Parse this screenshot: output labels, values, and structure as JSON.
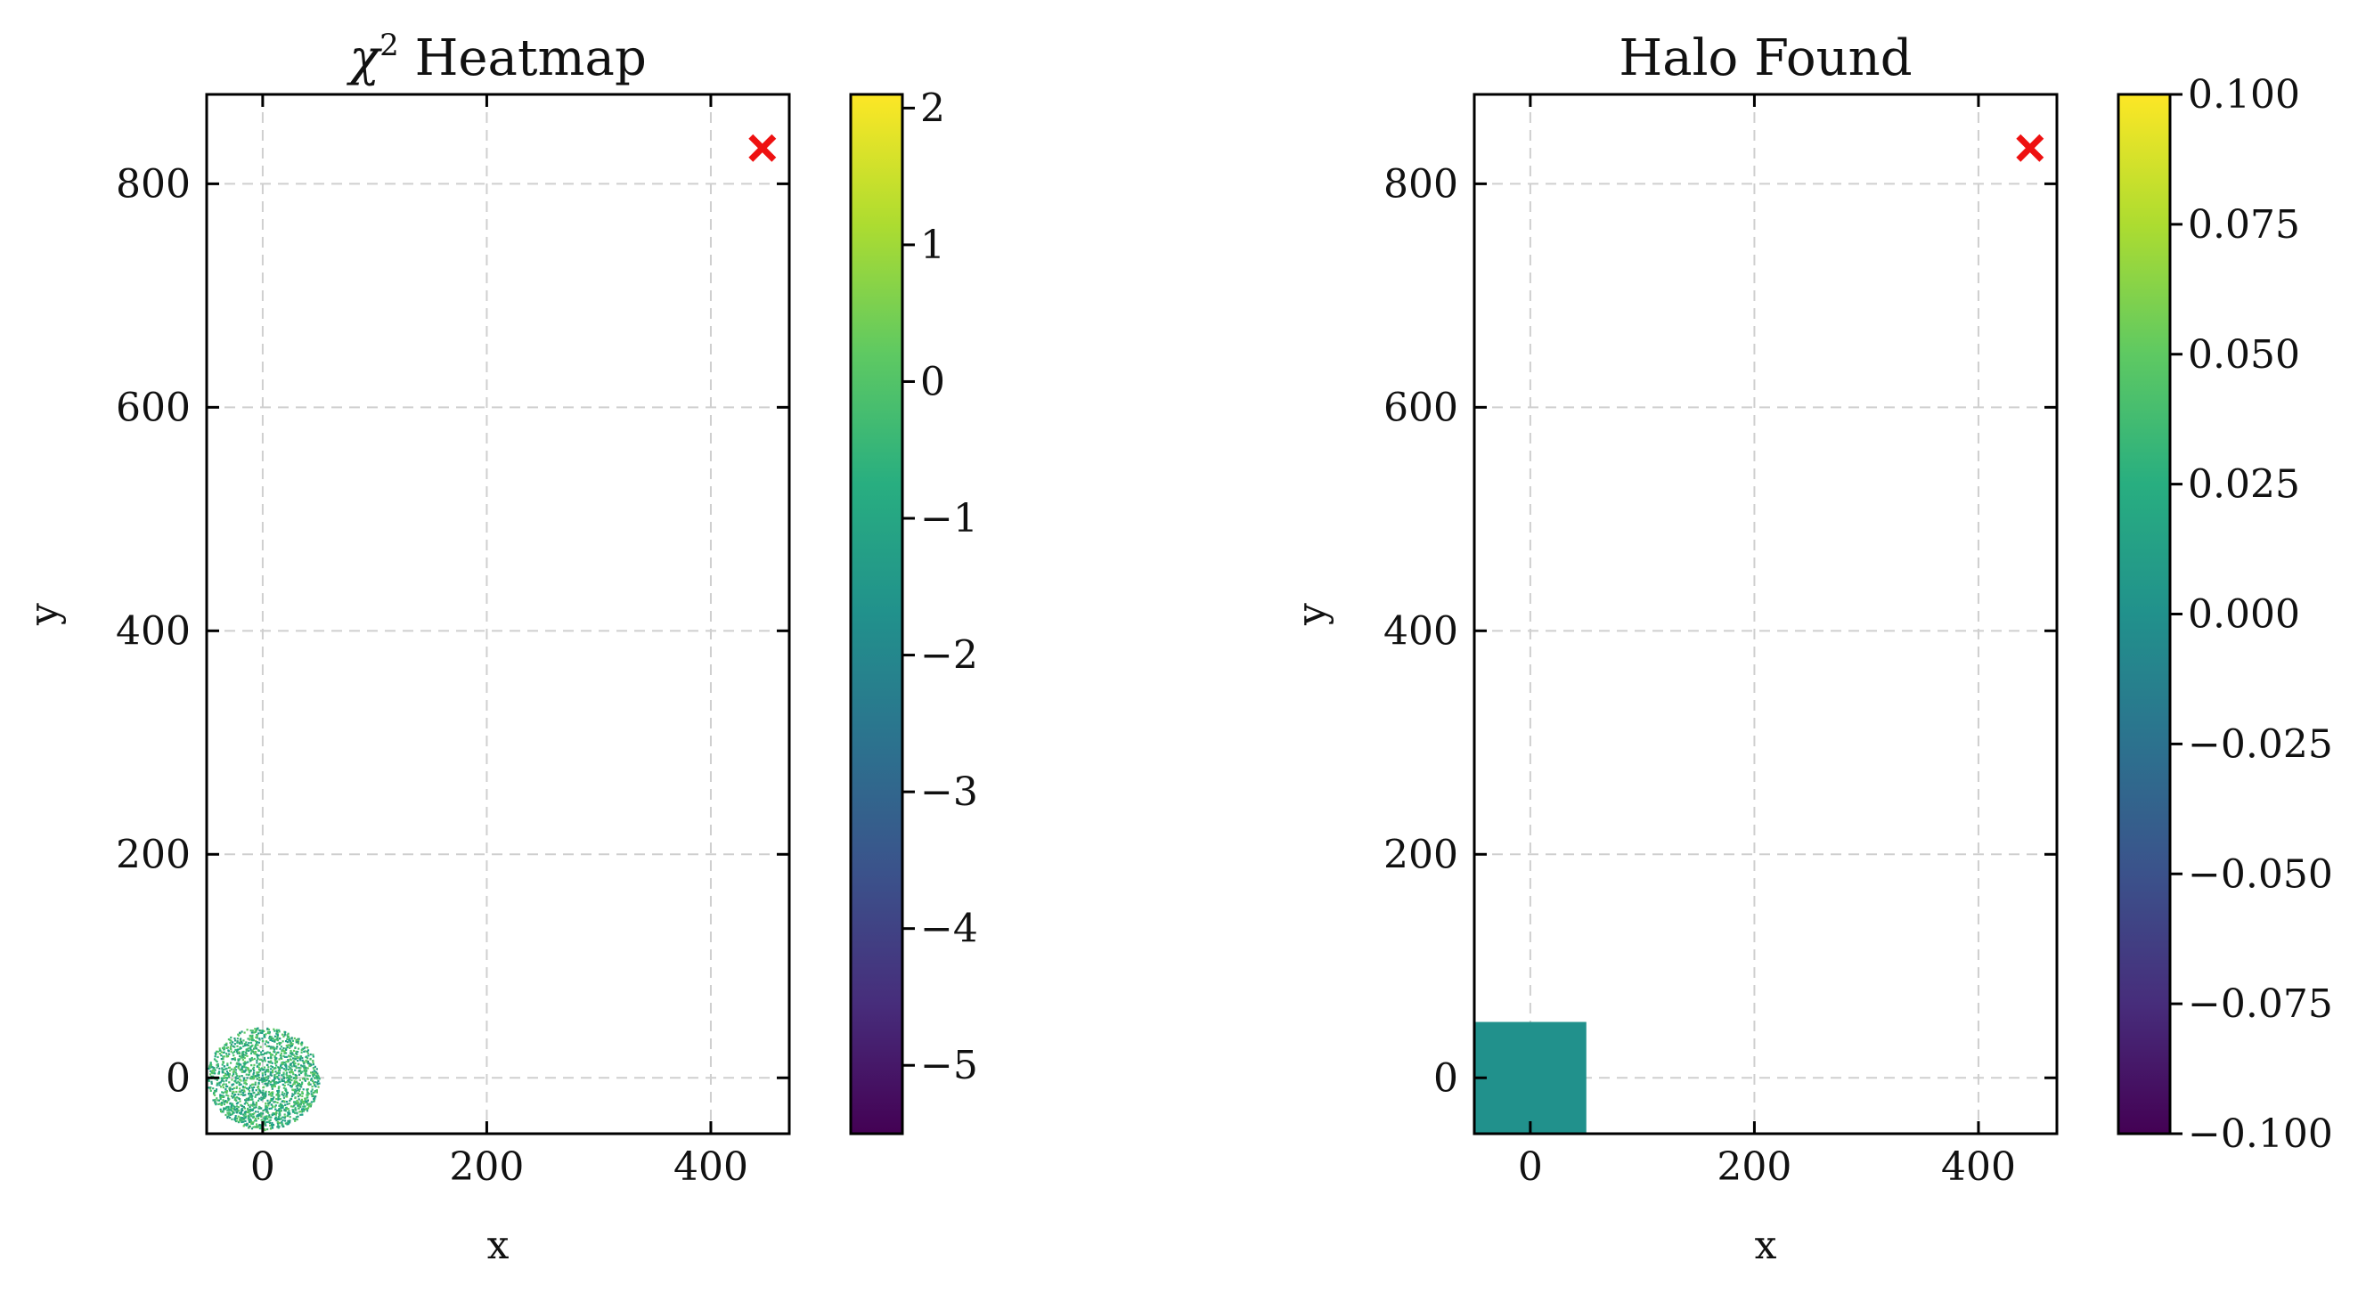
{
  "chart_data": [
    {
      "type": "heatmap",
      "title": "χ² Heatmap",
      "xlabel": "x",
      "ylabel": "y",
      "xlim": [
        -50,
        470
      ],
      "ylim": [
        -50,
        880
      ],
      "xticks": [
        0,
        200,
        400
      ],
      "yticks": [
        0,
        200,
        400,
        600,
        800
      ],
      "grid": true,
      "colorbar": {
        "colormap": "viridis",
        "vmin": -5.5,
        "vmax": 2.1,
        "ticks": [
          2,
          1,
          0,
          -1,
          -2,
          -3,
          -4,
          -5
        ]
      },
      "scatter_region": {
        "center": [
          0,
          0
        ],
        "radius": 50,
        "color": "#35b779"
      },
      "marker": {
        "x": 446,
        "y": 832,
        "symbol": "x",
        "color": "#ee1111"
      }
    },
    {
      "type": "heatmap",
      "title": "Halo Found",
      "xlabel": "x",
      "ylabel": "y",
      "xlim": [
        -50,
        470
      ],
      "ylim": [
        -50,
        880
      ],
      "xticks": [
        0,
        200,
        400
      ],
      "yticks": [
        0,
        200,
        400,
        600,
        800
      ],
      "grid": true,
      "colorbar": {
        "colormap": "viridis",
        "vmin": -0.1,
        "vmax": 0.1,
        "ticks": [
          0.1,
          0.075,
          0.05,
          0.025,
          0.0,
          -0.025,
          -0.05,
          -0.075,
          -0.1
        ],
        "tick_labels": [
          "0.100",
          "0.075",
          "0.050",
          "0.025",
          "0.000",
          "−0.025",
          "−0.050",
          "−0.075",
          "−0.100"
        ]
      },
      "cell": {
        "x0": -50,
        "x1": 50,
        "y0": -50,
        "y1": 50,
        "value": 0.0,
        "color": "#21918c"
      },
      "marker": {
        "x": 446,
        "y": 832,
        "symbol": "x",
        "color": "#ee1111"
      }
    }
  ]
}
